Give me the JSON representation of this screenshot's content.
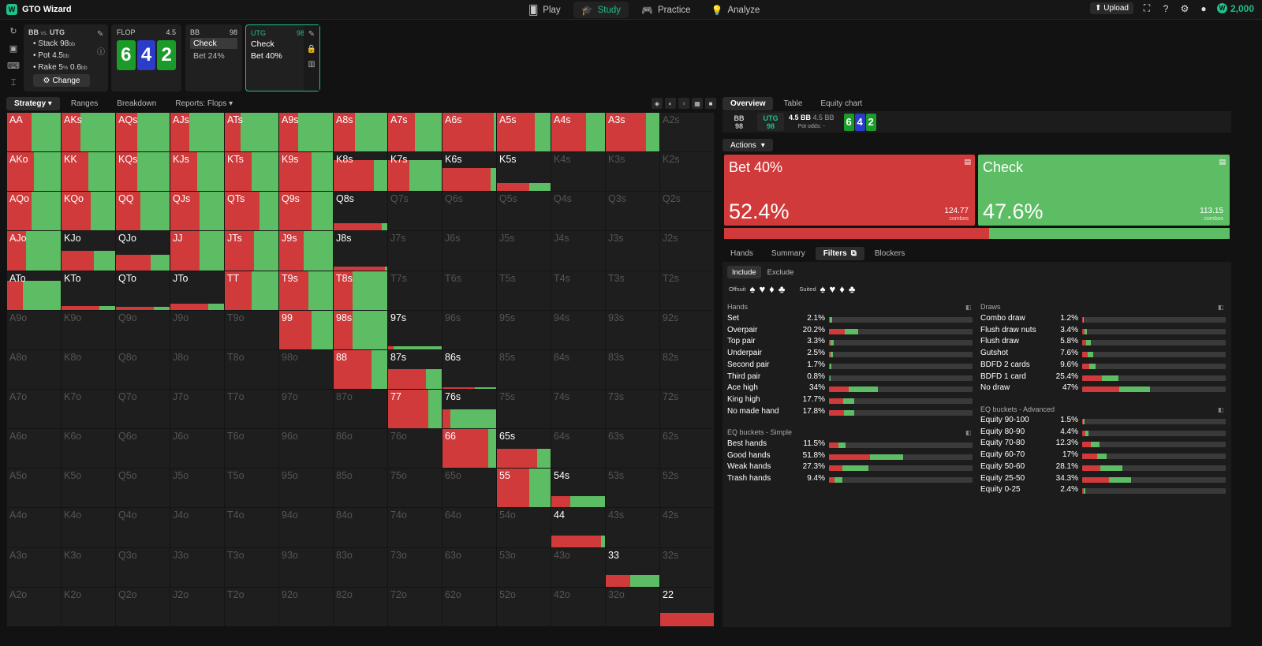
{
  "app": {
    "title": "GTO Wizard",
    "logo_letter": "W"
  },
  "nav": [
    {
      "label": "Play",
      "icon": "cards-icon",
      "active": false
    },
    {
      "label": "Study",
      "icon": "graduation-cap-icon",
      "active": true
    },
    {
      "label": "Practice",
      "icon": "gamepad-icon",
      "active": false
    },
    {
      "label": "Analyze",
      "icon": "lightbulb-icon",
      "active": false
    }
  ],
  "topright": {
    "upload": "Upload",
    "coins": "2,000"
  },
  "settings": {
    "title": "BB",
    "vs": "vs.",
    "opponent": "UTG",
    "stack": "Stack 98",
    "stack_unit": "bb",
    "pot": "Pot 4.5",
    "pot_unit": "bb",
    "rake": "Rake 5",
    "rake_pct": "%",
    "rake_val": " 0.6",
    "rake_unit": "bb",
    "change": "Change"
  },
  "flop": {
    "label": "FLOP",
    "pot": "4.5",
    "cards": [
      {
        "rank": "6",
        "color": "#1a9b2a"
      },
      {
        "rank": "4",
        "color": "#2a3cc8"
      },
      {
        "rank": "2",
        "color": "#1a9b2a"
      }
    ]
  },
  "seat_bb": {
    "name": "BB",
    "stack": "98",
    "options": [
      "Check",
      "Bet 24%"
    ]
  },
  "seat_utg": {
    "name": "UTG",
    "stack": "98",
    "options": [
      "Check",
      "Bet 40%"
    ]
  },
  "left_tabs": [
    "Strategy",
    "Ranges",
    "Breakdown",
    "Reports: Flops"
  ],
  "right_tabs": [
    "Overview",
    "Table",
    "Equity chart"
  ],
  "infobar": {
    "bb_label": "BB",
    "bb_stack": "98",
    "utg_label": "UTG",
    "utg_stack": "98",
    "pot_a": "4.5 BB",
    "pot_b": "4.5 BB",
    "pot_odds": "Pot odds:",
    "pot_odds_val": "-"
  },
  "actions_label": "Actions",
  "actions": [
    {
      "name": "Bet 40%",
      "pct": "52.4%",
      "combos": "124.77",
      "combos_label": "combos",
      "color": "#d03a3b"
    },
    {
      "name": "Check",
      "pct": "47.6%",
      "combos": "113.15",
      "combos_label": "combos",
      "color": "#5cbd64"
    }
  ],
  "overall": {
    "bet": 52.4,
    "check": 47.6
  },
  "sub_tabs": [
    "Hands",
    "Summary",
    "Filters",
    "Blockers"
  ],
  "include_tabs": [
    "Include",
    "Exclude"
  ],
  "suit_labels": {
    "offsuit": "Offsuit",
    "suited": "Suited"
  },
  "hands_title": "Hands",
  "hands": [
    {
      "name": "Set",
      "pct": "2.1%",
      "w": 2.1,
      "bet": 0.2
    },
    {
      "name": "Overpair",
      "pct": "20.2%",
      "w": 20.2,
      "bet": 0.55
    },
    {
      "name": "Top pair",
      "pct": "3.3%",
      "w": 3.3,
      "bet": 0.4
    },
    {
      "name": "Underpair",
      "pct": "2.5%",
      "w": 2.5,
      "bet": 0.4
    },
    {
      "name": "Second pair",
      "pct": "1.7%",
      "w": 1.7,
      "bet": 0.4
    },
    {
      "name": "Third pair",
      "pct": "0.8%",
      "w": 0.8,
      "bet": 0.4
    },
    {
      "name": "Ace high",
      "pct": "34%",
      "w": 34,
      "bet": 0.4
    },
    {
      "name": "King high",
      "pct": "17.7%",
      "w": 17.7,
      "bet": 0.55
    },
    {
      "name": "No made hand",
      "pct": "17.8%",
      "w": 17.8,
      "bet": 0.6
    }
  ],
  "eq_simple_title": "EQ buckets - Simple",
  "eq_simple": [
    {
      "name": "Best hands",
      "pct": "11.5%",
      "w": 11.5,
      "bet": 0.55
    },
    {
      "name": "Good hands",
      "pct": "51.8%",
      "w": 51.8,
      "bet": 0.55
    },
    {
      "name": "Weak hands",
      "pct": "27.3%",
      "w": 27.3,
      "bet": 0.35
    },
    {
      "name": "Trash hands",
      "pct": "9.4%",
      "w": 9.4,
      "bet": 0.4
    }
  ],
  "draws_title": "Draws",
  "draws": [
    {
      "name": "Combo draw",
      "pct": "1.2%",
      "w": 1.2,
      "bet": 0.5
    },
    {
      "name": "Flush draw nuts",
      "pct": "3.4%",
      "w": 3.4,
      "bet": 0.5
    },
    {
      "name": "Flush draw",
      "pct": "5.8%",
      "w": 5.8,
      "bet": 0.5
    },
    {
      "name": "Gutshot",
      "pct": "7.6%",
      "w": 7.6,
      "bet": 0.5
    },
    {
      "name": "BDFD 2 cards",
      "pct": "9.6%",
      "w": 9.6,
      "bet": 0.5
    },
    {
      "name": "BDFD 1 card",
      "pct": "25.4%",
      "w": 25.4,
      "bet": 0.55
    },
    {
      "name": "No draw",
      "pct": "47%",
      "w": 47,
      "bet": 0.55
    }
  ],
  "eq_adv_title": "EQ buckets - Advanced",
  "eq_adv": [
    {
      "name": "Equity 90-100",
      "pct": "1.5%",
      "w": 1.5,
      "bet": 0.5
    },
    {
      "name": "Equity 80-90",
      "pct": "4.4%",
      "w": 4.4,
      "bet": 0.5
    },
    {
      "name": "Equity 70-80",
      "pct": "12.3%",
      "w": 12.3,
      "bet": 0.5
    },
    {
      "name": "Equity 60-70",
      "pct": "17%",
      "w": 17,
      "bet": 0.6
    },
    {
      "name": "Equity 50-60",
      "pct": "28.1%",
      "w": 28.1,
      "bet": 0.45
    },
    {
      "name": "Equity 25-50",
      "pct": "34.3%",
      "w": 34.3,
      "bet": 0.55
    },
    {
      "name": "Equity 0-25",
      "pct": "2.4%",
      "w": 2.4,
      "bet": 0.5
    }
  ],
  "grid": [
    [
      [
        "AA",
        1,
        0.45
      ],
      [
        "AKs",
        1,
        0.35
      ],
      [
        "AQs",
        1,
        0.4
      ],
      [
        "AJs",
        1,
        0.35
      ],
      [
        "ATs",
        1,
        0.3
      ],
      [
        "A9s",
        1,
        0.35
      ],
      [
        "A8s",
        1,
        0.4
      ],
      [
        "A7s",
        1,
        0.5
      ],
      [
        "A6s",
        1,
        0.95
      ],
      [
        "A5s",
        1,
        0.7
      ],
      [
        "A4s",
        1,
        0.65
      ],
      [
        "A3s",
        1,
        0.75
      ],
      [
        "A2s",
        0,
        0
      ]
    ],
    [
      [
        "AKo",
        1,
        0.5
      ],
      [
        "KK",
        1,
        0.5
      ],
      [
        "KQs",
        1,
        0.4
      ],
      [
        "KJs",
        1,
        0.5
      ],
      [
        "KTs",
        1,
        0.5
      ],
      [
        "K9s",
        1,
        0.6
      ],
      [
        "K8s",
        0.8,
        0.75
      ],
      [
        "K7s",
        0.8,
        0.4
      ],
      [
        "K6s",
        0.6,
        0.9
      ],
      [
        "K5s",
        0.2,
        0.6
      ],
      [
        "K4s",
        0,
        0
      ],
      [
        "K3s",
        0,
        0
      ],
      [
        "K2s",
        0,
        0
      ]
    ],
    [
      [
        "AQo",
        1,
        0.45
      ],
      [
        "KQo",
        1,
        0.55
      ],
      [
        "QQ",
        1,
        0.45
      ],
      [
        "QJs",
        1,
        0.55
      ],
      [
        "QTs",
        1,
        0.65
      ],
      [
        "Q9s",
        1,
        0.6
      ],
      [
        "Q8s",
        0.2,
        0.9
      ],
      [
        "Q7s",
        0,
        0
      ],
      [
        "Q6s",
        0,
        0
      ],
      [
        "Q5s",
        0,
        0
      ],
      [
        "Q4s",
        0,
        0
      ],
      [
        "Q3s",
        0,
        0
      ],
      [
        "Q2s",
        0,
        0
      ]
    ],
    [
      [
        "AJo",
        1,
        0.35
      ],
      [
        "KJo",
        0.5,
        0.6
      ],
      [
        "QJo",
        0.4,
        0.65
      ],
      [
        "JJ",
        1,
        0.55
      ],
      [
        "JTs",
        1,
        0.55
      ],
      [
        "J9s",
        1,
        0.45
      ],
      [
        "J8s",
        0.1,
        0.95
      ],
      [
        "J7s",
        0,
        0
      ],
      [
        "J6s",
        0,
        0
      ],
      [
        "J5s",
        0,
        0
      ],
      [
        "J4s",
        0,
        0
      ],
      [
        "J3s",
        0,
        0
      ],
      [
        "J2s",
        0,
        0
      ]
    ],
    [
      [
        "ATo",
        0.75,
        0.3
      ],
      [
        "KTo",
        0.1,
        0.7
      ],
      [
        "QTo",
        0.08,
        0.7
      ],
      [
        "JTo",
        0.15,
        0.7
      ],
      [
        "TT",
        1,
        0.5
      ],
      [
        "T9s",
        1,
        0.55
      ],
      [
        "T8s",
        1,
        0.35
      ],
      [
        "T7s",
        0,
        0
      ],
      [
        "T6s",
        0,
        0
      ],
      [
        "T5s",
        0,
        0
      ],
      [
        "T4s",
        0,
        0
      ],
      [
        "T3s",
        0,
        0
      ],
      [
        "T2s",
        0,
        0
      ]
    ],
    [
      [
        "A9o",
        0,
        0
      ],
      [
        "K9o",
        0,
        0
      ],
      [
        "Q9o",
        0,
        0
      ],
      [
        "J9o",
        0,
        0
      ],
      [
        "T9o",
        0,
        0
      ],
      [
        "99",
        1,
        0.6
      ],
      [
        "98s",
        1,
        0.35
      ],
      [
        "97s",
        0.08,
        0.1
      ],
      [
        "96s",
        0,
        0
      ],
      [
        "95s",
        0,
        0
      ],
      [
        "94s",
        0,
        0
      ],
      [
        "93s",
        0,
        0
      ],
      [
        "92s",
        0,
        0
      ]
    ],
    [
      [
        "A8o",
        0,
        0
      ],
      [
        "K8o",
        0,
        0
      ],
      [
        "Q8o",
        0,
        0
      ],
      [
        "J8o",
        0,
        0
      ],
      [
        "T8o",
        0,
        0
      ],
      [
        "98o",
        0,
        0
      ],
      [
        "88",
        1,
        0.7
      ],
      [
        "87s",
        0.5,
        0.7
      ],
      [
        "86s",
        0.05,
        0.6
      ],
      [
        "85s",
        0,
        0
      ],
      [
        "84s",
        0,
        0
      ],
      [
        "83s",
        0,
        0
      ],
      [
        "82s",
        0,
        0
      ]
    ],
    [
      [
        "A7o",
        0,
        0
      ],
      [
        "K7o",
        0,
        0
      ],
      [
        "Q7o",
        0,
        0
      ],
      [
        "J7o",
        0,
        0
      ],
      [
        "T7o",
        0,
        0
      ],
      [
        "97o",
        0,
        0
      ],
      [
        "87o",
        0,
        0
      ],
      [
        "77",
        1,
        0.75
      ],
      [
        "76s",
        0.5,
        0.15
      ],
      [
        "75s",
        0,
        0
      ],
      [
        "74s",
        0,
        0
      ],
      [
        "73s",
        0,
        0
      ],
      [
        "72s",
        0,
        0
      ]
    ],
    [
      [
        "A6o",
        0,
        0
      ],
      [
        "K6o",
        0,
        0
      ],
      [
        "Q6o",
        0,
        0
      ],
      [
        "J6o",
        0,
        0
      ],
      [
        "T6o",
        0,
        0
      ],
      [
        "96o",
        0,
        0
      ],
      [
        "86o",
        0,
        0
      ],
      [
        "76o",
        0,
        0
      ],
      [
        "66",
        1,
        0.85
      ],
      [
        "65s",
        0.5,
        0.75
      ],
      [
        "64s",
        0,
        0
      ],
      [
        "63s",
        0,
        0
      ],
      [
        "62s",
        0,
        0
      ]
    ],
    [
      [
        "A5o",
        0,
        0
      ],
      [
        "K5o",
        0,
        0
      ],
      [
        "Q5o",
        0,
        0
      ],
      [
        "J5o",
        0,
        0
      ],
      [
        "T5o",
        0,
        0
      ],
      [
        "95o",
        0,
        0
      ],
      [
        "85o",
        0,
        0
      ],
      [
        "75o",
        0,
        0
      ],
      [
        "65o",
        0,
        0
      ],
      [
        "55",
        1,
        0.6
      ],
      [
        "54s",
        0.3,
        0.35
      ],
      [
        "53s",
        0,
        0
      ],
      [
        "52s",
        0,
        0
      ]
    ],
    [
      [
        "A4o",
        0,
        0
      ],
      [
        "K4o",
        0,
        0
      ],
      [
        "Q4o",
        0,
        0
      ],
      [
        "J4o",
        0,
        0
      ],
      [
        "T4o",
        0,
        0
      ],
      [
        "94o",
        0,
        0
      ],
      [
        "84o",
        0,
        0
      ],
      [
        "74o",
        0,
        0
      ],
      [
        "64o",
        0,
        0
      ],
      [
        "54o",
        0,
        0
      ],
      [
        "44",
        0.3,
        0.93
      ],
      [
        "43s",
        0,
        0
      ],
      [
        "42s",
        0,
        0
      ]
    ],
    [
      [
        "A3o",
        0,
        0
      ],
      [
        "K3o",
        0,
        0
      ],
      [
        "Q3o",
        0,
        0
      ],
      [
        "J3o",
        0,
        0
      ],
      [
        "T3o",
        0,
        0
      ],
      [
        "93o",
        0,
        0
      ],
      [
        "83o",
        0,
        0
      ],
      [
        "73o",
        0,
        0
      ],
      [
        "63o",
        0,
        0
      ],
      [
        "53o",
        0,
        0
      ],
      [
        "43o",
        0,
        0
      ],
      [
        "33",
        0.3,
        0.45
      ],
      [
        "32s",
        0,
        0
      ]
    ],
    [
      [
        "A2o",
        0,
        0
      ],
      [
        "K2o",
        0,
        0
      ],
      [
        "Q2o",
        0,
        0
      ],
      [
        "J2o",
        0,
        0
      ],
      [
        "T2o",
        0,
        0
      ],
      [
        "92o",
        0,
        0
      ],
      [
        "82o",
        0,
        0
      ],
      [
        "72o",
        0,
        0
      ],
      [
        "62o",
        0,
        0
      ],
      [
        "52o",
        0,
        0
      ],
      [
        "42o",
        0,
        0
      ],
      [
        "32o",
        0,
        0
      ],
      [
        "22",
        0.35,
        1
      ]
    ]
  ]
}
